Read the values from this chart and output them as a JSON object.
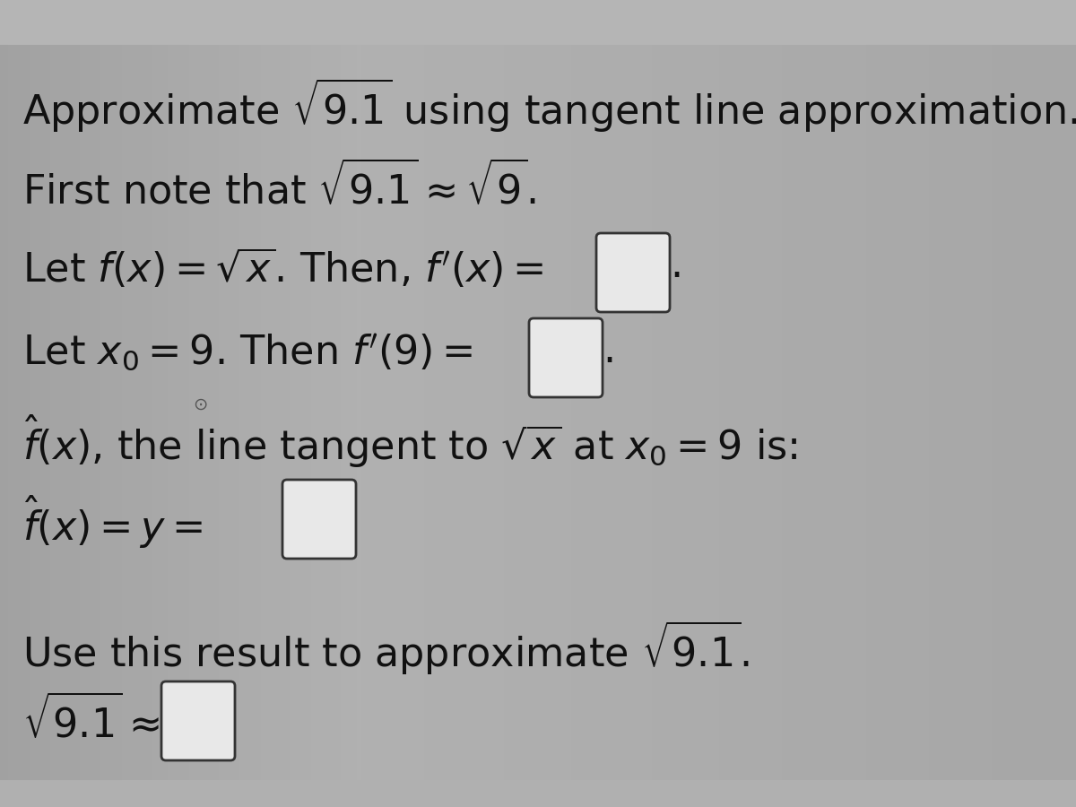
{
  "background_color": "#a0a0a0",
  "text_area_color": "#b0b0b0",
  "box_fill_color": "#e8e8e8",
  "box_border_color": "#333333",
  "text_color": "#111111",
  "body_fontsize": 32,
  "top_strip_color": "#bebebe",
  "bottom_strip_color": "#c0c0c0",
  "figwidth": 12.0,
  "figheight": 9.0,
  "dpi": 100
}
